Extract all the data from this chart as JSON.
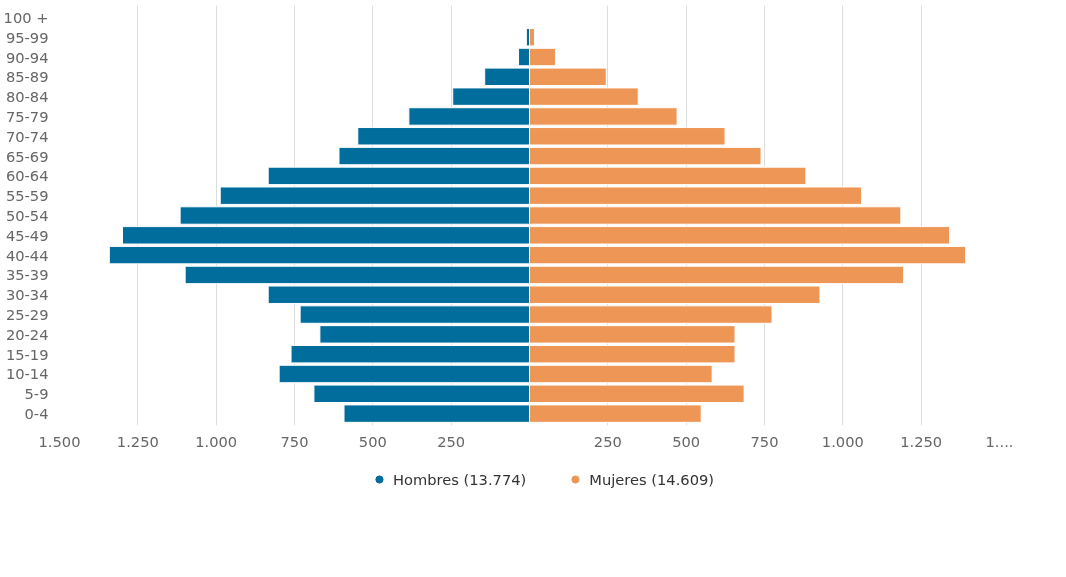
{
  "chart_data": {
    "type": "bar",
    "orientation": "horizontal",
    "categories": [
      "100 +",
      "95-99",
      "90-94",
      "85-89",
      "80-84",
      "75-79",
      "70-74",
      "65-69",
      "60-64",
      "55-59",
      "50-54",
      "45-49",
      "40-44",
      "35-39",
      "30-34",
      "25-29",
      "20-24",
      "15-19",
      "10-14",
      "5-9",
      "0-4"
    ],
    "series": [
      {
        "name": "Hombres (13.774)",
        "color": "#006d9c",
        "values": [
          null,
          -10,
          -35,
          -143,
          -245,
          -385,
          -548,
          -608,
          -834,
          -987,
          -1115,
          -1299,
          -1341,
          -1099,
          -834,
          -732,
          -669,
          -761,
          -799,
          -688,
          -592
        ]
      },
      {
        "name": "Mujeres (14.609)",
        "color": "#ee9655",
        "values": [
          null,
          16,
          83,
          245,
          347,
          471,
          624,
          739,
          882,
          1060,
          1185,
          1341,
          1392,
          1194,
          927,
          774,
          656,
          656,
          583,
          685,
          548
        ]
      }
    ],
    "xlim": [
      -1500,
      1500
    ],
    "xticks": [
      {
        "value": -1500,
        "label": "1.500"
      },
      {
        "value": -1250,
        "label": "1.250"
      },
      {
        "value": -1000,
        "label": "1.000"
      },
      {
        "value": -750,
        "label": "750"
      },
      {
        "value": -500,
        "label": "500"
      },
      {
        "value": -250,
        "label": "250"
      },
      {
        "value": 250,
        "label": "250"
      },
      {
        "value": 500,
        "label": "500"
      },
      {
        "value": 750,
        "label": "750"
      },
      {
        "value": 1000,
        "label": "1.000"
      },
      {
        "value": 1250,
        "label": "1.250"
      },
      {
        "value": 1500,
        "label": "1...."
      }
    ],
    "stacked": true,
    "grid": "x",
    "legend": "bottom"
  }
}
